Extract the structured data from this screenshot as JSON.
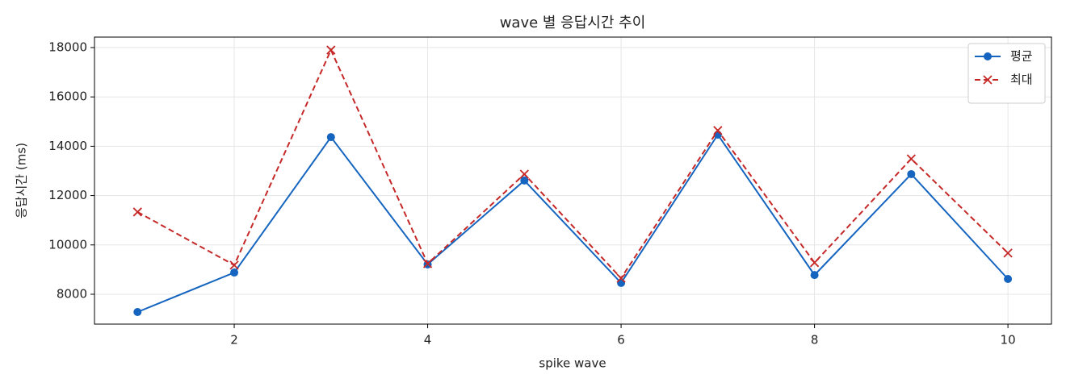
{
  "chart_data": {
    "type": "line",
    "title": "wave 별 응답시간 추이",
    "x_label": "spike wave",
    "y_label": "응답시간 (ms)",
    "x": [
      1,
      2,
      3,
      4,
      5,
      6,
      7,
      8,
      9,
      10
    ],
    "series": [
      {
        "name": "평균",
        "color": "#1565c0",
        "marker": "o",
        "dash": "solid",
        "values": [
          7280,
          8880,
          14370,
          9210,
          12610,
          8460,
          14470,
          8780,
          12870,
          8620
        ]
      },
      {
        "name": "최대",
        "color": "#c62828",
        "marker": "x",
        "dash": "dashed",
        "values": [
          11335,
          9180,
          17900,
          9240,
          12870,
          8650,
          14640,
          9280,
          13490,
          9670
        ]
      }
    ],
    "xlim": [
      0.555,
      10.45
    ],
    "ylim": [
      6790,
      18425
    ],
    "xticks": [
      2,
      4,
      6,
      8,
      10
    ],
    "yticks": [
      8000,
      10000,
      12000,
      14000,
      16000,
      18000
    ],
    "grid": true,
    "legend": "upper right"
  }
}
